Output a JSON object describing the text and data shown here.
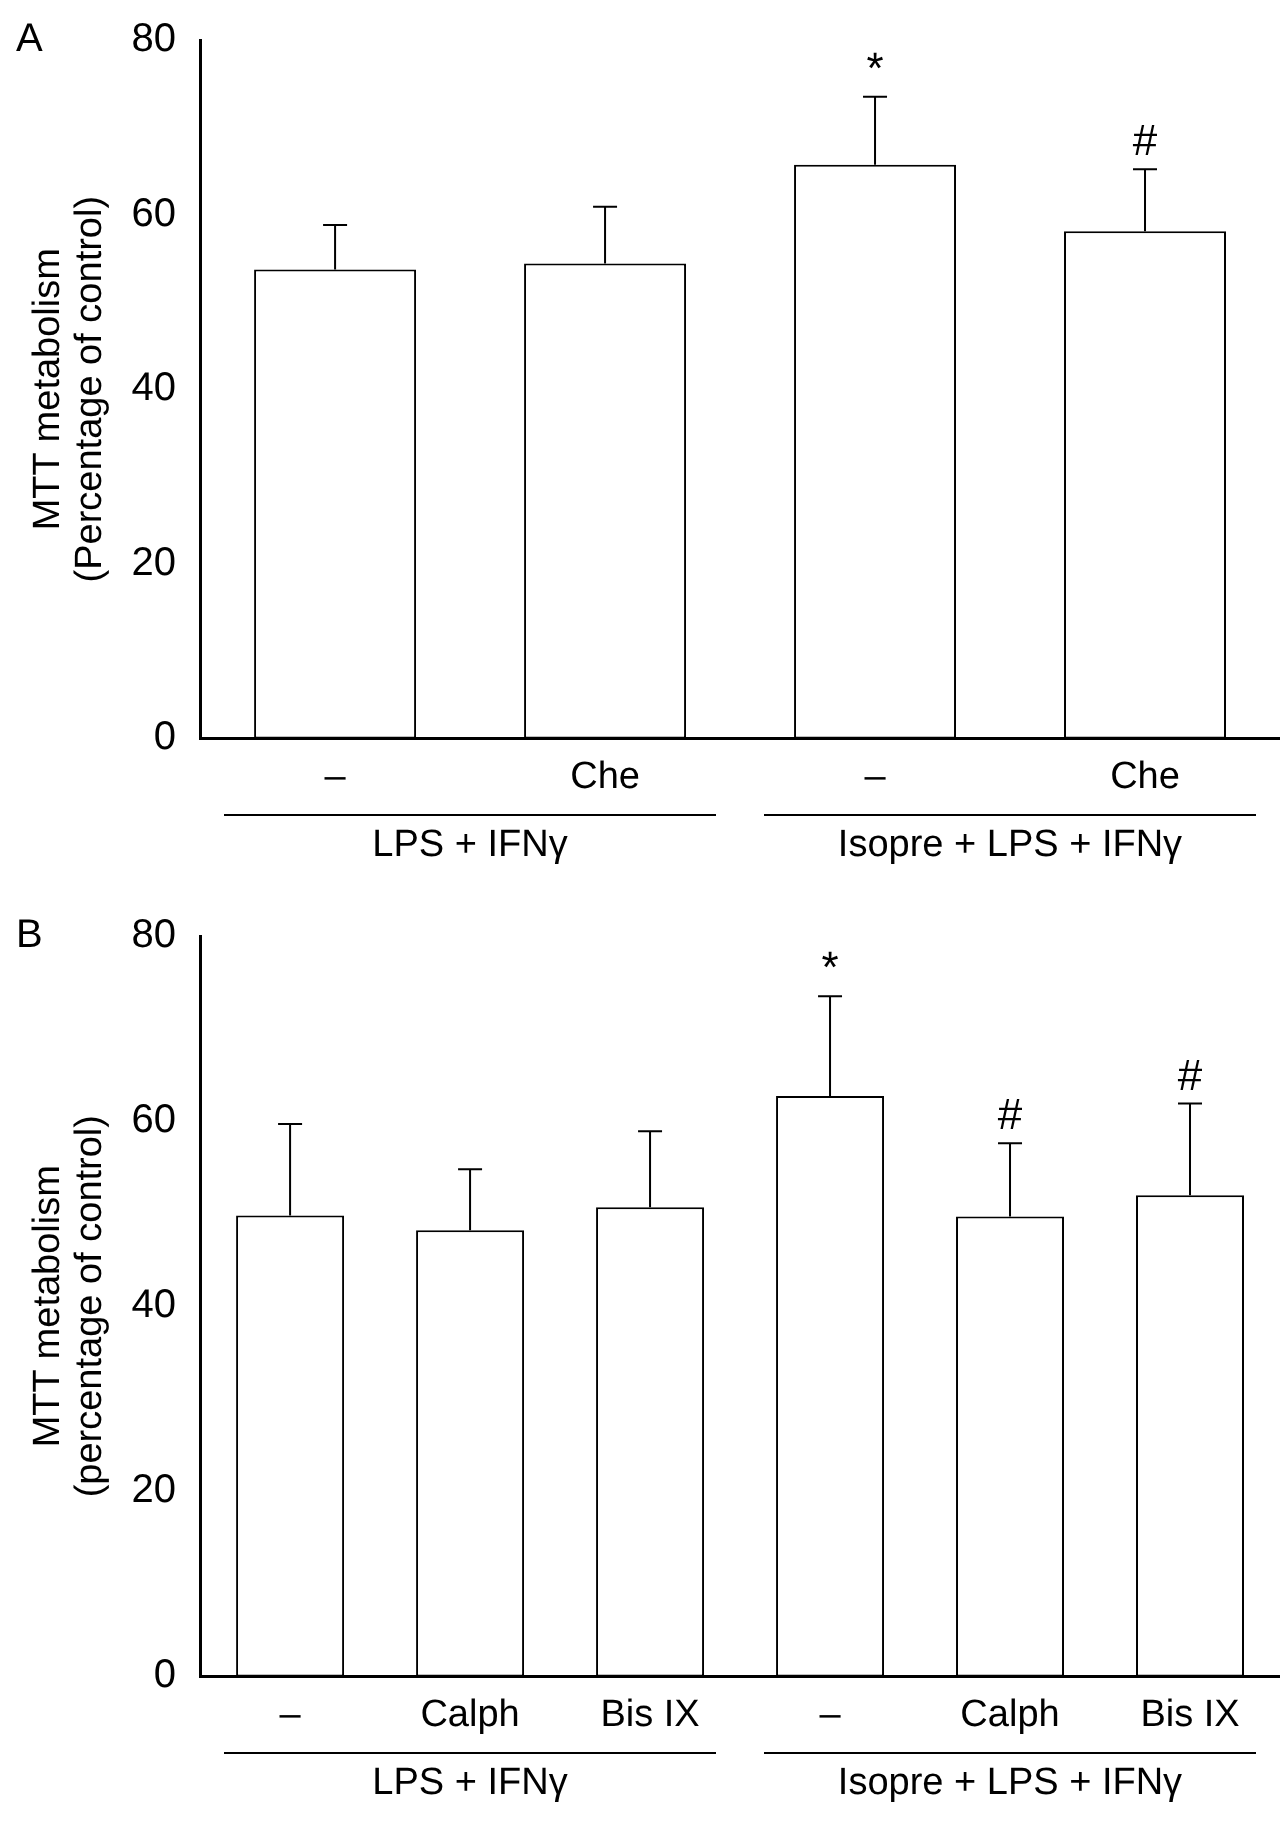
{
  "chart_data": [
    {
      "type": "bar",
      "title": "A",
      "ylabel": "MTT metabolism\n(Percentage of control)",
      "categories": [
        "–",
        "Che",
        "–",
        "Che"
      ],
      "values": [
        53.7,
        54.4,
        65.7,
        58.1
      ],
      "errors": [
        [
          53.7,
          58.8
        ],
        [
          54.4,
          60.9
        ],
        [
          65.7,
          73.5
        ],
        [
          58.1,
          65.2
        ]
      ],
      "value_labels": [
        null,
        null,
        "*",
        "#"
      ],
      "color": "#ffffff",
      "ylim": [
        0,
        80
      ],
      "yticks": [
        0,
        20,
        40,
        60,
        80
      ],
      "annotations": [
        "LPS + IFNγ",
        "Isopre + LPS + IFNγ"
      ]
    },
    {
      "type": "bar",
      "title": "B",
      "ylabel": "MTT metabolism\n(percentage of control)",
      "categories": [
        "–",
        "Calph",
        "Bis IX",
        "–",
        "Calph",
        "Bis IX"
      ],
      "values": [
        49.8,
        48.2,
        50.7,
        62.7,
        49.7,
        52.0
      ],
      "errors": [
        [
          49.8,
          59.7
        ],
        [
          48.2,
          54.8
        ],
        [
          50.7,
          58.9
        ],
        [
          62.7,
          73.5
        ],
        [
          49.7,
          57.6
        ],
        [
          52.0,
          61.9
        ]
      ],
      "value_labels": [
        null,
        null,
        null,
        "*",
        "#",
        "#"
      ],
      "color": "#ffffff",
      "ylim": [
        0,
        80
      ],
      "yticks": [
        0,
        20,
        40,
        60,
        80
      ],
      "annotations": [
        "LPS +  IFNγ",
        "Isopre + LPS + IFNγ"
      ]
    }
  ]
}
